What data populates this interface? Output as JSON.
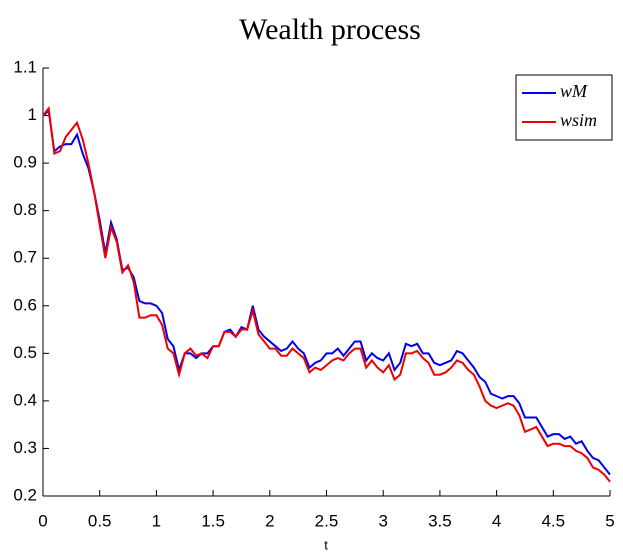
{
  "chart_data": {
    "type": "line",
    "title": "Wealth process",
    "x_label": "t",
    "x": [
      0,
      0.05,
      0.1,
      0.15,
      0.2,
      0.25,
      0.3,
      0.35,
      0.4,
      0.45,
      0.5,
      0.55,
      0.6,
      0.65,
      0.7,
      0.75,
      0.8,
      0.85,
      0.9,
      0.95,
      1,
      1.05,
      1.1,
      1.15,
      1.2,
      1.25,
      1.3,
      1.35,
      1.4,
      1.45,
      1.5,
      1.55,
      1.6,
      1.65,
      1.7,
      1.75,
      1.8,
      1.85,
      1.9,
      1.95,
      2,
      2.05,
      2.1,
      2.15,
      2.2,
      2.25,
      2.3,
      2.35,
      2.4,
      2.45,
      2.5,
      2.55,
      2.6,
      2.65,
      2.7,
      2.75,
      2.8,
      2.85,
      2.9,
      2.95,
      3,
      3.05,
      3.1,
      3.15,
      3.2,
      3.25,
      3.3,
      3.35,
      3.4,
      3.45,
      3.5,
      3.55,
      3.6,
      3.65,
      3.7,
      3.75,
      3.8,
      3.85,
      3.9,
      3.95,
      4,
      4.05,
      4.1,
      4.15,
      4.2,
      4.25,
      4.3,
      4.35,
      4.4,
      4.45,
      4.5,
      4.55,
      4.6,
      4.65,
      4.7,
      4.75,
      4.8,
      4.85,
      4.9,
      4.95,
      5
    ],
    "series": [
      {
        "name": "wM",
        "color": "#0000ee",
        "values": [
          1.0,
          1.01,
          0.925,
          0.935,
          0.94,
          0.94,
          0.96,
          0.92,
          0.89,
          0.84,
          0.78,
          0.71,
          0.775,
          0.74,
          0.675,
          0.68,
          0.66,
          0.61,
          0.605,
          0.605,
          0.6,
          0.585,
          0.53,
          0.515,
          0.465,
          0.5,
          0.5,
          0.49,
          0.5,
          0.5,
          0.515,
          0.515,
          0.545,
          0.55,
          0.535,
          0.555,
          0.55,
          0.6,
          0.55,
          0.535,
          0.525,
          0.515,
          0.505,
          0.51,
          0.525,
          0.51,
          0.5,
          0.47,
          0.48,
          0.485,
          0.5,
          0.5,
          0.51,
          0.495,
          0.51,
          0.525,
          0.525,
          0.485,
          0.5,
          0.49,
          0.485,
          0.5,
          0.465,
          0.48,
          0.52,
          0.515,
          0.52,
          0.5,
          0.5,
          0.48,
          0.475,
          0.48,
          0.485,
          0.505,
          0.5,
          0.485,
          0.47,
          0.45,
          0.44,
          0.415,
          0.41,
          0.405,
          0.41,
          0.41,
          0.395,
          0.365,
          0.365,
          0.365,
          0.345,
          0.325,
          0.33,
          0.33,
          0.32,
          0.325,
          0.31,
          0.315,
          0.295,
          0.28,
          0.275,
          0.26,
          0.245
        ]
      },
      {
        "name": "wsim",
        "color": "#ee0000",
        "values": [
          1.0,
          1.015,
          0.92,
          0.925,
          0.955,
          0.97,
          0.985,
          0.95,
          0.9,
          0.84,
          0.77,
          0.7,
          0.765,
          0.735,
          0.67,
          0.685,
          0.65,
          0.575,
          0.575,
          0.58,
          0.58,
          0.56,
          0.51,
          0.5,
          0.455,
          0.5,
          0.51,
          0.495,
          0.5,
          0.49,
          0.515,
          0.515,
          0.545,
          0.545,
          0.535,
          0.55,
          0.55,
          0.59,
          0.54,
          0.525,
          0.51,
          0.51,
          0.495,
          0.495,
          0.51,
          0.5,
          0.49,
          0.46,
          0.47,
          0.465,
          0.475,
          0.485,
          0.49,
          0.485,
          0.5,
          0.51,
          0.51,
          0.47,
          0.485,
          0.47,
          0.46,
          0.475,
          0.445,
          0.455,
          0.5,
          0.5,
          0.505,
          0.49,
          0.48,
          0.455,
          0.455,
          0.46,
          0.47,
          0.485,
          0.48,
          0.465,
          0.455,
          0.43,
          0.4,
          0.39,
          0.385,
          0.39,
          0.395,
          0.39,
          0.37,
          0.335,
          0.34,
          0.345,
          0.325,
          0.305,
          0.31,
          0.31,
          0.305,
          0.305,
          0.295,
          0.29,
          0.28,
          0.26,
          0.255,
          0.245,
          0.23
        ]
      }
    ],
    "xlim": [
      0,
      5
    ],
    "xticks": [
      0,
      0.5,
      1,
      1.5,
      2,
      2.5,
      3,
      3.5,
      4,
      4.5,
      5
    ],
    "ylim": [
      0.2,
      1.1
    ],
    "yticks": [
      0.2,
      0.3,
      0.4,
      0.5,
      0.6,
      0.7,
      0.8,
      0.9,
      1,
      1.1
    ],
    "grid": false,
    "legend": "upper right"
  }
}
